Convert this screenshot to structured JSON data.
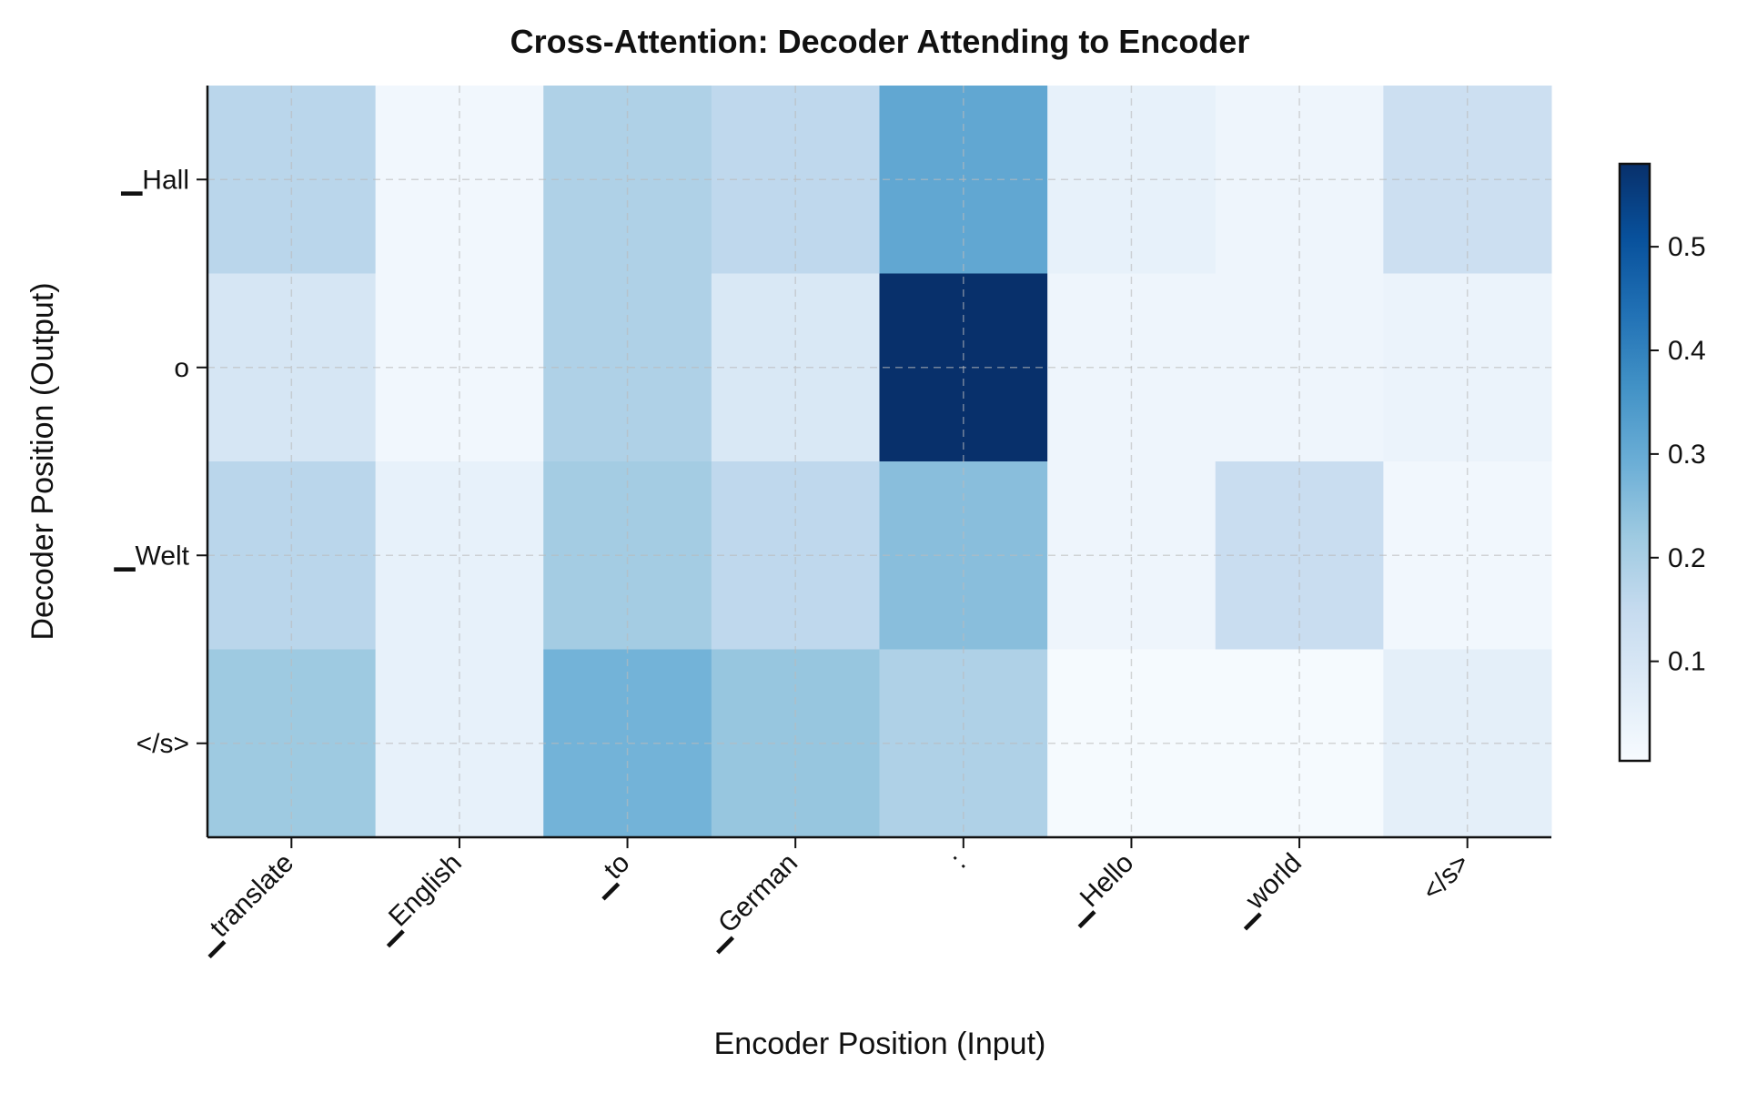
{
  "chart_data": {
    "type": "heatmap",
    "title": "Cross-Attention: Decoder Attending to Encoder",
    "xlabel": "Encoder Position (Input)",
    "ylabel": "Decoder Position (Output)",
    "x_categories": [
      "▁translate",
      "▁English",
      "▁to",
      "▁German",
      ":",
      "▁Hello",
      "▁world",
      "</s>"
    ],
    "y_categories": [
      "▁Hall",
      "o",
      "▁Welt",
      "</s>"
    ],
    "values": [
      [
        0.17,
        0.02,
        0.19,
        0.16,
        0.31,
        0.05,
        0.03,
        0.13
      ],
      [
        0.1,
        0.02,
        0.19,
        0.09,
        0.58,
        0.03,
        0.03,
        0.04
      ],
      [
        0.17,
        0.05,
        0.21,
        0.16,
        0.25,
        0.03,
        0.14,
        0.02
      ],
      [
        0.22,
        0.05,
        0.28,
        0.23,
        0.19,
        0.01,
        0.01,
        0.06
      ]
    ],
    "colormap": "Blues",
    "colorbar": {
      "range": [
        0.004,
        0.58
      ],
      "ticks": [
        "0.1",
        "0.2",
        "0.3",
        "0.4",
        "0.5"
      ]
    },
    "grid": true,
    "grid_style": "dashed"
  }
}
